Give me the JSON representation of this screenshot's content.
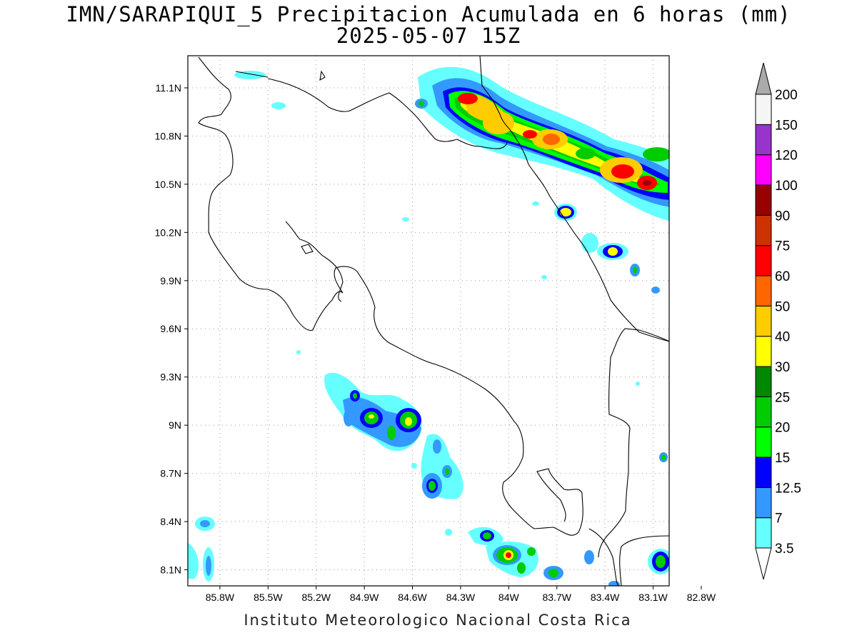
{
  "title": "IMN/SARAPIQUI_5 Precipitacion Acumulada en 6 horas (mm)",
  "subtitle": "2025-05-07 15Z",
  "footer": "Instituto Meteorologico Nacional Costa Rica",
  "map": {
    "lon_range": [
      -86.0,
      -83.0
    ],
    "lat_range": [
      8.0,
      11.3
    ],
    "lon_ticks": [
      "85.8W",
      "85.5W",
      "85.2W",
      "84.9W",
      "84.6W",
      "84.3W",
      "84W",
      "83.7W",
      "83.4W",
      "83.1W",
      "82.8W"
    ],
    "lat_ticks": [
      "11.1N",
      "10.8N",
      "10.5N",
      "10.2N",
      "9.9N",
      "9.6N",
      "9.3N",
      "9N",
      "8.7N",
      "8.4N",
      "8.1N"
    ],
    "grid": "dotted"
  },
  "legend": {
    "unit": "mm",
    "levels": [
      "3.5",
      "7",
      "12.5",
      "15",
      "20",
      "25",
      "30",
      "40",
      "50",
      "60",
      "75",
      "90",
      "100",
      "120",
      "150",
      "200"
    ],
    "colors": [
      "#66ffff",
      "#3399ff",
      "#0000ff",
      "#00ff00",
      "#00cc00",
      "#008800",
      "#ffff00",
      "#ffcc00",
      "#ff6600",
      "#ff0000",
      "#cc3300",
      "#990000",
      "#ff00ff",
      "#9933cc",
      "#f5f5f5",
      "#aaaaaa"
    ]
  }
}
